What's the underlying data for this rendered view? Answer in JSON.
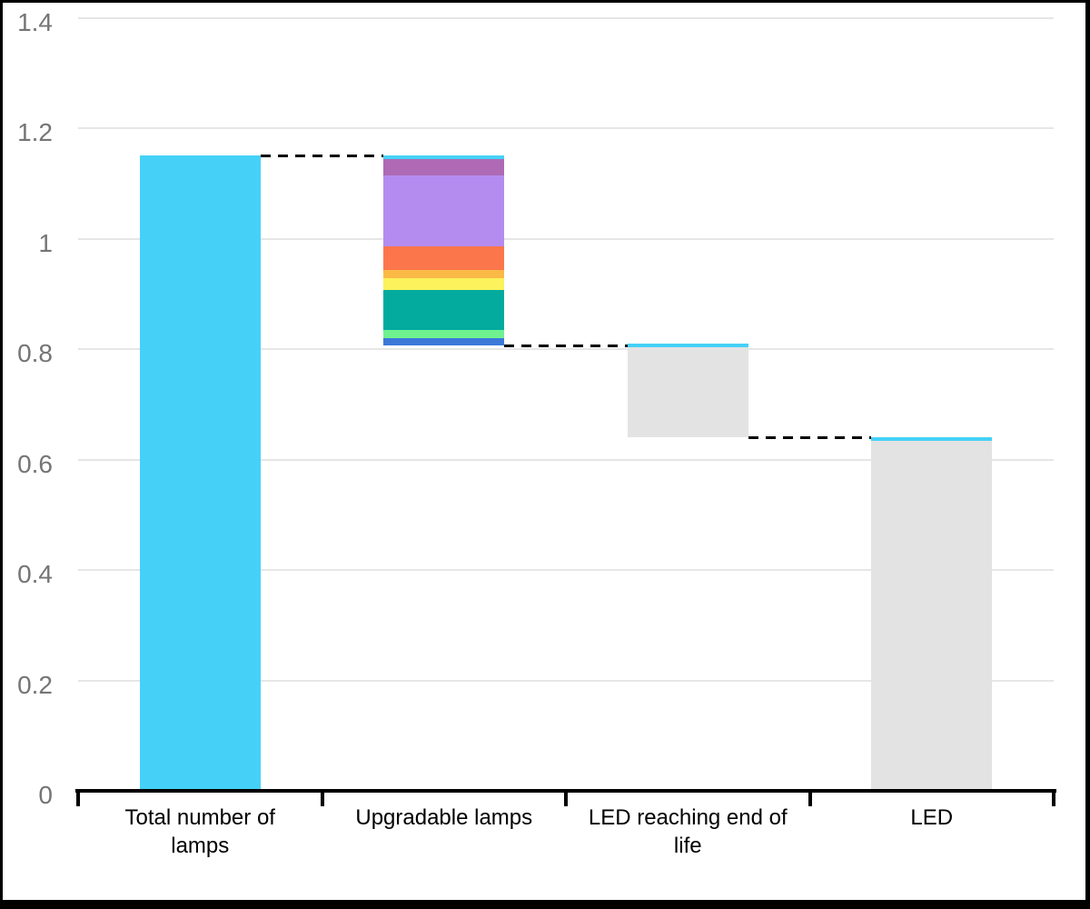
{
  "chart_data": {
    "type": "waterfall",
    "title": "",
    "xlabel": "",
    "ylabel": "",
    "ylim": [
      0,
      1.4
    ],
    "grid": true,
    "categories": [
      "Total number of\nlamps",
      "Upgradable lamps",
      "LED reaching end of\nlife",
      "LED"
    ],
    "y_ticks": [
      {
        "value": 0,
        "label": "0"
      },
      {
        "value": 0.2,
        "label": "0.2"
      },
      {
        "value": 0.4,
        "label": "0.4"
      },
      {
        "value": 0.6,
        "label": "0.6"
      },
      {
        "value": 0.8,
        "label": "0.8"
      },
      {
        "value": 1,
        "label": "1"
      },
      {
        "value": 1.2,
        "label": "1.2"
      },
      {
        "value": 1.4,
        "label": "1.4"
      }
    ],
    "bars": [
      {
        "category": "Total number of lamps",
        "base": 0,
        "top": 1.15,
        "total": 1.15,
        "style": "solid",
        "color": "#45d1f7"
      },
      {
        "category": "Upgradable lamps",
        "base": 0.806,
        "top": 1.15,
        "total": 0.344,
        "style": "stacked",
        "segments": [
          {
            "name": "blue",
            "color": "#3c78d8",
            "value": 0.014
          },
          {
            "name": "light-green",
            "color": "#6ff18f",
            "value": 0.015
          },
          {
            "name": "teal",
            "color": "#02ab9e",
            "value": 0.072
          },
          {
            "name": "yellow",
            "color": "#fcf25c",
            "value": 0.021
          },
          {
            "name": "amber",
            "color": "#fbb946",
            "value": 0.016
          },
          {
            "name": "orange",
            "color": "#fc764b",
            "value": 0.042
          },
          {
            "name": "light-purple",
            "color": "#b48cf0",
            "value": 0.128
          },
          {
            "name": "mauve",
            "color": "#ae6ab4",
            "value": 0.03
          },
          {
            "name": "cyan",
            "color": "#45d1f7",
            "value": 0.006
          }
        ]
      },
      {
        "category": "LED reaching end of life",
        "base": 0.64,
        "top": 0.81,
        "total": 0.17,
        "style": "capped",
        "color": "#e3e3e3",
        "cap_color": "#45d1f7"
      },
      {
        "category": "LED",
        "base": 0,
        "top": 0.64,
        "total": 0.64,
        "style": "capped",
        "color": "#e3e3e3",
        "cap_color": "#45d1f7"
      }
    ],
    "connectors": [
      {
        "level": 1.15,
        "from_bar": 0,
        "to_bar": 1
      },
      {
        "level": 0.806,
        "from_bar": 1,
        "to_bar": 2
      },
      {
        "level": 0.64,
        "from_bar": 2,
        "to_bar": 3
      }
    ],
    "colors": {
      "axis": "#000000",
      "gridline": "#e6e6e6",
      "y_label": "#757575",
      "x_label": "#000000",
      "connector": "#000000",
      "background": "#ffffff"
    }
  }
}
